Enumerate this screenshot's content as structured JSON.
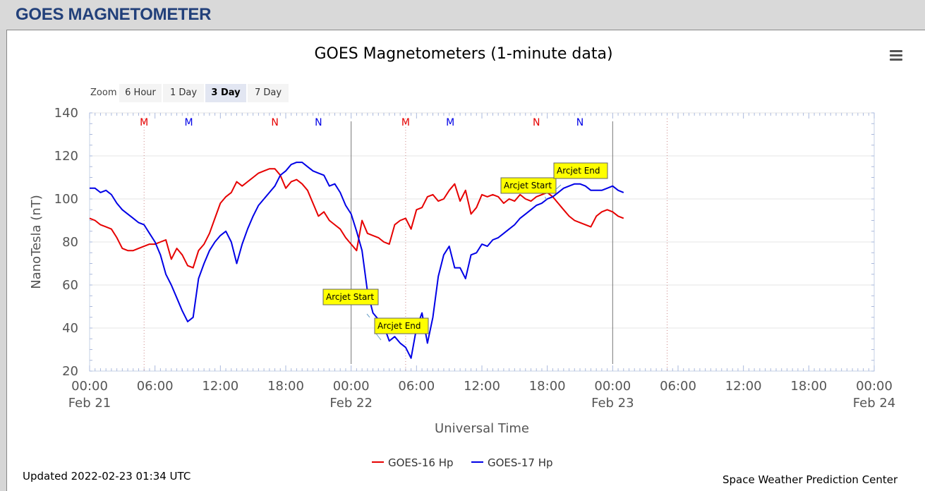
{
  "page": {
    "title": "GOES MAGNETOMETER"
  },
  "zoom": {
    "label": "Zoom",
    "buttons": [
      "6 Hour",
      "1 Day",
      "3 Day",
      "7 Day"
    ],
    "selected": "3 Day"
  },
  "footer": {
    "updated": "Updated 2022-02-23 01:34 UTC",
    "credit": "Space Weather Prediction Center"
  },
  "icons": {
    "menu": "hamburger-menu-icon"
  },
  "chart_data": {
    "type": "line",
    "title": "GOES Magnetometers (1-minute data)",
    "xlabel": "Universal Time",
    "ylabel": "NanoTesla (nT)",
    "ylim": [
      20,
      140
    ],
    "y_ticks": [
      20,
      40,
      60,
      80,
      100,
      120,
      140
    ],
    "x_unit": "hours since 00:00 Feb 21 UTC",
    "xlim": [
      0,
      72
    ],
    "x_ticks": [
      {
        "time": "00:00",
        "date": "Feb 21"
      },
      {
        "time": "06:00",
        "date": ""
      },
      {
        "time": "12:00",
        "date": ""
      },
      {
        "time": "18:00",
        "date": ""
      },
      {
        "time": "00:00",
        "date": "Feb 22"
      },
      {
        "time": "06:00",
        "date": ""
      },
      {
        "time": "12:00",
        "date": ""
      },
      {
        "time": "18:00",
        "date": ""
      },
      {
        "time": "00:00",
        "date": "Feb 23"
      },
      {
        "time": "06:00",
        "date": ""
      },
      {
        "time": "12:00",
        "date": ""
      },
      {
        "time": "18:00",
        "date": ""
      },
      {
        "time": "00:00",
        "date": "Feb 24"
      }
    ],
    "legend_position": "bottom-center",
    "grid": true,
    "series": [
      {
        "name": "GOES-16 Hp",
        "color": "#e60000",
        "x": [
          0,
          0.5,
          1,
          1.5,
          2,
          2.5,
          3,
          3.5,
          4,
          4.5,
          5,
          5.5,
          6,
          6.5,
          7,
          7.5,
          8,
          8.5,
          9,
          9.5,
          10,
          10.5,
          11,
          11.5,
          12,
          12.5,
          13,
          13.5,
          14,
          14.5,
          15,
          15.5,
          16,
          16.5,
          17,
          17.5,
          18,
          18.5,
          19,
          19.5,
          20,
          20.5,
          21,
          21.5,
          22,
          22.5,
          23,
          23.5,
          24,
          24.5,
          25,
          25.5,
          26,
          26.5,
          27,
          27.5,
          28,
          28.5,
          29,
          29.5,
          30,
          30.5,
          31,
          31.5,
          32,
          32.5,
          33,
          33.5,
          34,
          34.5,
          35,
          35.5,
          36,
          36.5,
          37,
          37.5,
          38,
          38.5,
          39,
          39.5,
          40,
          40.5,
          41,
          41.5,
          42,
          42.5,
          43,
          43.5,
          44,
          44.5,
          45,
          45.5,
          46,
          46.5,
          47,
          47.5,
          48,
          48.5,
          49
        ],
        "values": [
          91,
          90,
          88,
          87,
          86,
          82,
          77,
          76,
          76,
          77,
          78,
          79,
          79,
          80,
          81,
          72,
          77,
          74,
          69,
          68,
          76,
          79,
          84,
          91,
          98,
          101,
          103,
          108,
          106,
          108,
          110,
          112,
          113,
          114,
          114,
          111,
          105,
          108,
          109,
          107,
          104,
          98,
          92,
          94,
          90,
          88,
          86,
          82,
          79,
          76,
          90,
          84,
          83,
          82,
          80,
          79,
          88,
          90,
          91,
          86,
          95,
          96,
          101,
          102,
          99,
          100,
          104,
          107,
          99,
          104,
          93,
          96,
          102,
          101,
          102,
          101,
          98,
          100,
          99,
          102,
          100,
          99,
          101,
          102,
          103,
          101,
          98,
          95,
          92,
          90,
          89,
          88,
          87,
          92,
          94,
          95,
          94,
          92,
          91
        ]
      },
      {
        "name": "GOES-17 Hp",
        "color": "#0000e6",
        "x": [
          0,
          0.5,
          1,
          1.5,
          2,
          2.5,
          3,
          3.5,
          4,
          4.5,
          5,
          5.5,
          6,
          6.5,
          7,
          7.5,
          8,
          8.5,
          9,
          9.5,
          10,
          10.5,
          11,
          11.5,
          12,
          12.5,
          13,
          13.5,
          14,
          14.5,
          15,
          15.5,
          16,
          16.5,
          17,
          17.5,
          18,
          18.5,
          19,
          19.5,
          20,
          20.5,
          21,
          21.5,
          22,
          22.5,
          23,
          23.5,
          24,
          24.5,
          25,
          25.5,
          26,
          26.5,
          27,
          27.5,
          28,
          28.5,
          29,
          29.5,
          30,
          30.5,
          31,
          31.5,
          32,
          32.5,
          33,
          33.5,
          34,
          34.5,
          35,
          35.5,
          36,
          36.5,
          37,
          37.5,
          38,
          38.5,
          39,
          39.5,
          40,
          40.5,
          41,
          41.5,
          42,
          42.5,
          43,
          43.5,
          44,
          44.5,
          45,
          45.5,
          46,
          46.5,
          47,
          47.5,
          48,
          48.5,
          49
        ],
        "values": [
          105,
          105,
          103,
          104,
          102,
          98,
          95,
          93,
          91,
          89,
          88,
          84,
          80,
          74,
          65,
          60,
          54,
          48,
          43,
          45,
          63,
          70,
          76,
          80,
          83,
          85,
          80,
          70,
          79,
          86,
          92,
          97,
          100,
          103,
          106,
          111,
          113,
          116,
          117,
          117,
          115,
          113,
          112,
          111,
          106,
          107,
          103,
          97,
          93,
          85,
          76,
          57,
          47,
          44,
          41,
          34,
          36,
          33,
          31,
          26,
          40,
          47,
          33,
          45,
          64,
          74,
          78,
          68,
          68,
          63,
          74,
          75,
          79,
          78,
          81,
          82,
          84,
          86,
          88,
          91,
          93,
          95,
          97,
          98,
          100,
          101,
          103,
          105,
          106,
          107,
          107,
          106,
          104,
          104,
          104,
          105,
          106,
          104,
          103
        ]
      }
    ],
    "day_boundaries": [
      24,
      48
    ],
    "noon_markers": [
      {
        "label": "M",
        "series": "GOES-16 Hp",
        "x": 5,
        "color": "#e60000"
      },
      {
        "label": "M",
        "series": "GOES-17 Hp",
        "x": 9.1,
        "color": "#0000e6"
      },
      {
        "label": "N",
        "series": "GOES-16 Hp",
        "x": 17,
        "color": "#e60000"
      },
      {
        "label": "N",
        "series": "GOES-17 Hp",
        "x": 21,
        "color": "#0000e6"
      },
      {
        "label": "M",
        "series": "GOES-16 Hp",
        "x": 29,
        "color": "#e60000"
      },
      {
        "label": "M",
        "series": "GOES-17 Hp",
        "x": 33.1,
        "color": "#0000e6"
      },
      {
        "label": "N",
        "series": "GOES-16 Hp",
        "x": 41,
        "color": "#e60000"
      },
      {
        "label": "N",
        "series": "GOES-17 Hp",
        "x": 45,
        "color": "#0000e6"
      }
    ],
    "dotted_verticals": [
      5,
      29,
      53
    ],
    "annotations": [
      {
        "text": "Arcjet Start",
        "x": 25.7,
        "y": 45
      },
      {
        "text": "Arcjet End",
        "x": 26.2,
        "y": 38
      },
      {
        "text": "Arcjet Start",
        "x": 41.8,
        "y": 101
      },
      {
        "text": "Arcjet End",
        "x": 42.7,
        "y": 104
      }
    ]
  }
}
